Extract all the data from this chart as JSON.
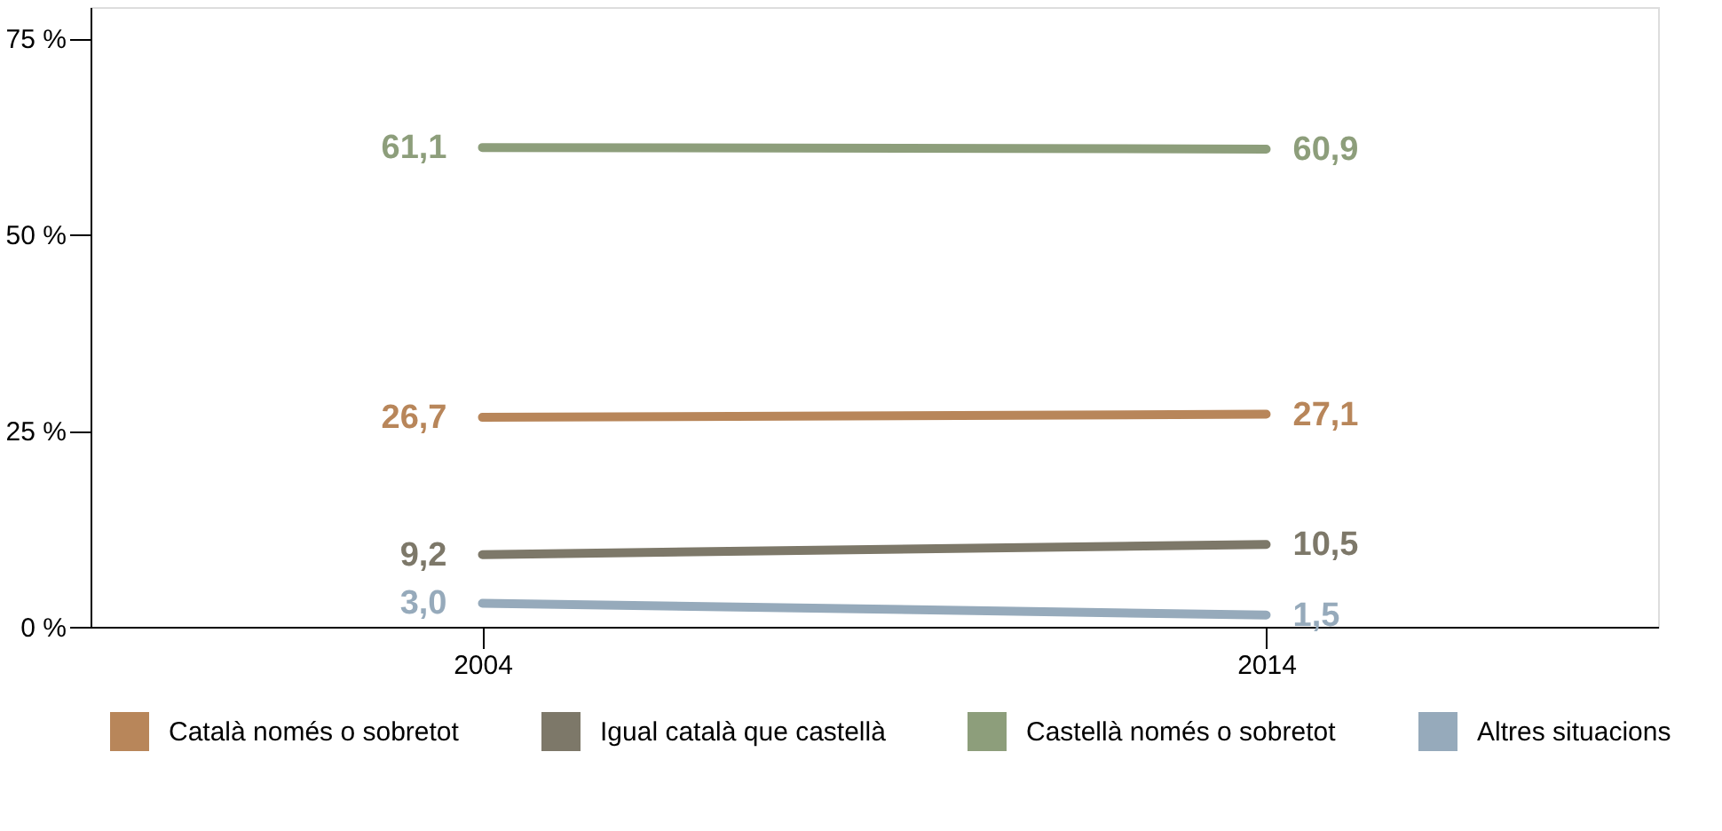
{
  "chart_data": {
    "type": "line",
    "categories": [
      "2004",
      "2014"
    ],
    "series": [
      {
        "name": "Català només o sobretot",
        "color": "#b8865a",
        "values": [
          26.7,
          27.1
        ],
        "value_labels": [
          "26,7",
          "27,1"
        ]
      },
      {
        "name": "Igual català que castellà",
        "color": "#7d7869",
        "values": [
          9.2,
          10.5
        ],
        "value_labels": [
          "9,2",
          "10,5"
        ]
      },
      {
        "name": "Castellà només o sobretot",
        "color": "#8d9e7b",
        "values": [
          61.1,
          60.9
        ],
        "value_labels": [
          "61,1",
          "60,9"
        ]
      },
      {
        "name": "Altres situacions",
        "color": "#96aabb",
        "values": [
          3.0,
          1.5
        ],
        "value_labels": [
          "3,0",
          "1,5"
        ]
      }
    ],
    "ylim": [
      0,
      79
    ],
    "yticks": [
      {
        "value": 0,
        "label": "0 %"
      },
      {
        "value": 25,
        "label": "25 %"
      },
      {
        "value": 50,
        "label": "50 %"
      },
      {
        "value": 75,
        "label": "75 %"
      }
    ],
    "grid": false,
    "legend": "bottom",
    "marker": "none",
    "line_style": "solid"
  }
}
